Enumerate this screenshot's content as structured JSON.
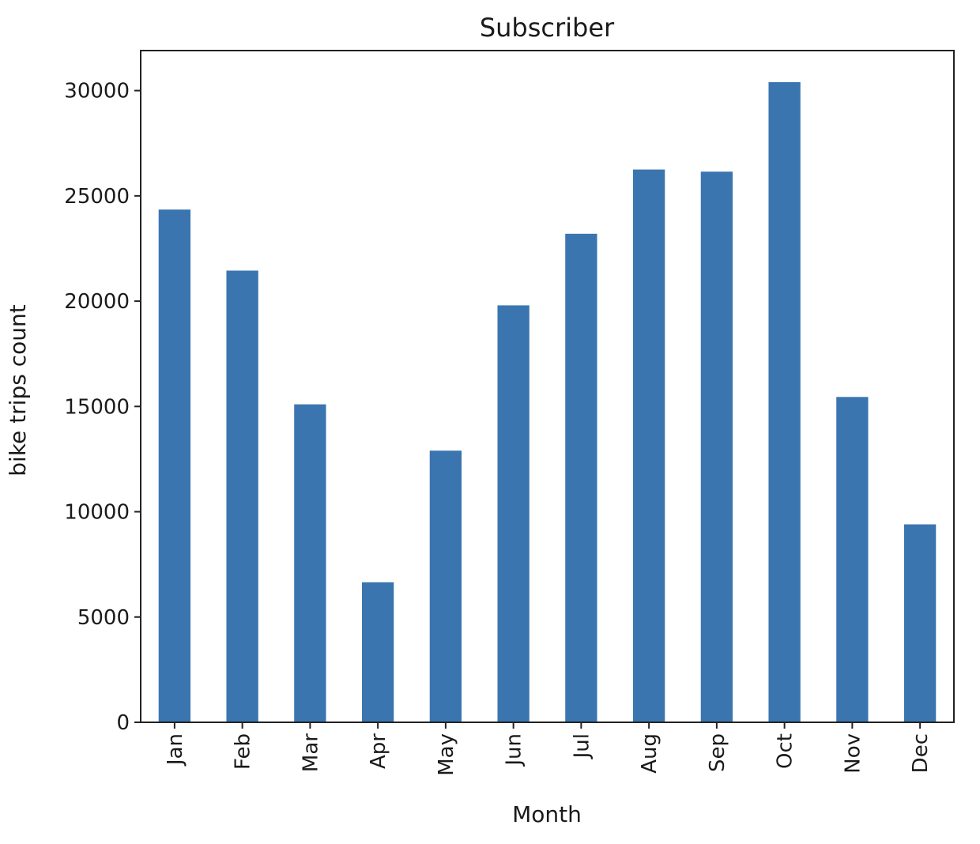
{
  "chart_data": {
    "type": "bar",
    "title": "Subscriber",
    "xlabel": "Month",
    "ylabel": "bike trips count",
    "categories": [
      "Jan",
      "Feb",
      "Mar",
      "Apr",
      "May",
      "Jun",
      "Jul",
      "Aug",
      "Sep",
      "Oct",
      "Nov",
      "Dec"
    ],
    "values": [
      24350,
      21450,
      15100,
      6650,
      12900,
      19800,
      23200,
      26250,
      26150,
      30400,
      15450,
      9400
    ],
    "ylim": [
      0,
      31900
    ],
    "yticks": [
      0,
      5000,
      10000,
      15000,
      20000,
      25000,
      30000
    ],
    "ytick_labels": [
      "0",
      "5000",
      "10000",
      "15000",
      "20000",
      "25000",
      "30000"
    ],
    "grid": false,
    "legend": "none",
    "bar_color": "#3a75af"
  }
}
